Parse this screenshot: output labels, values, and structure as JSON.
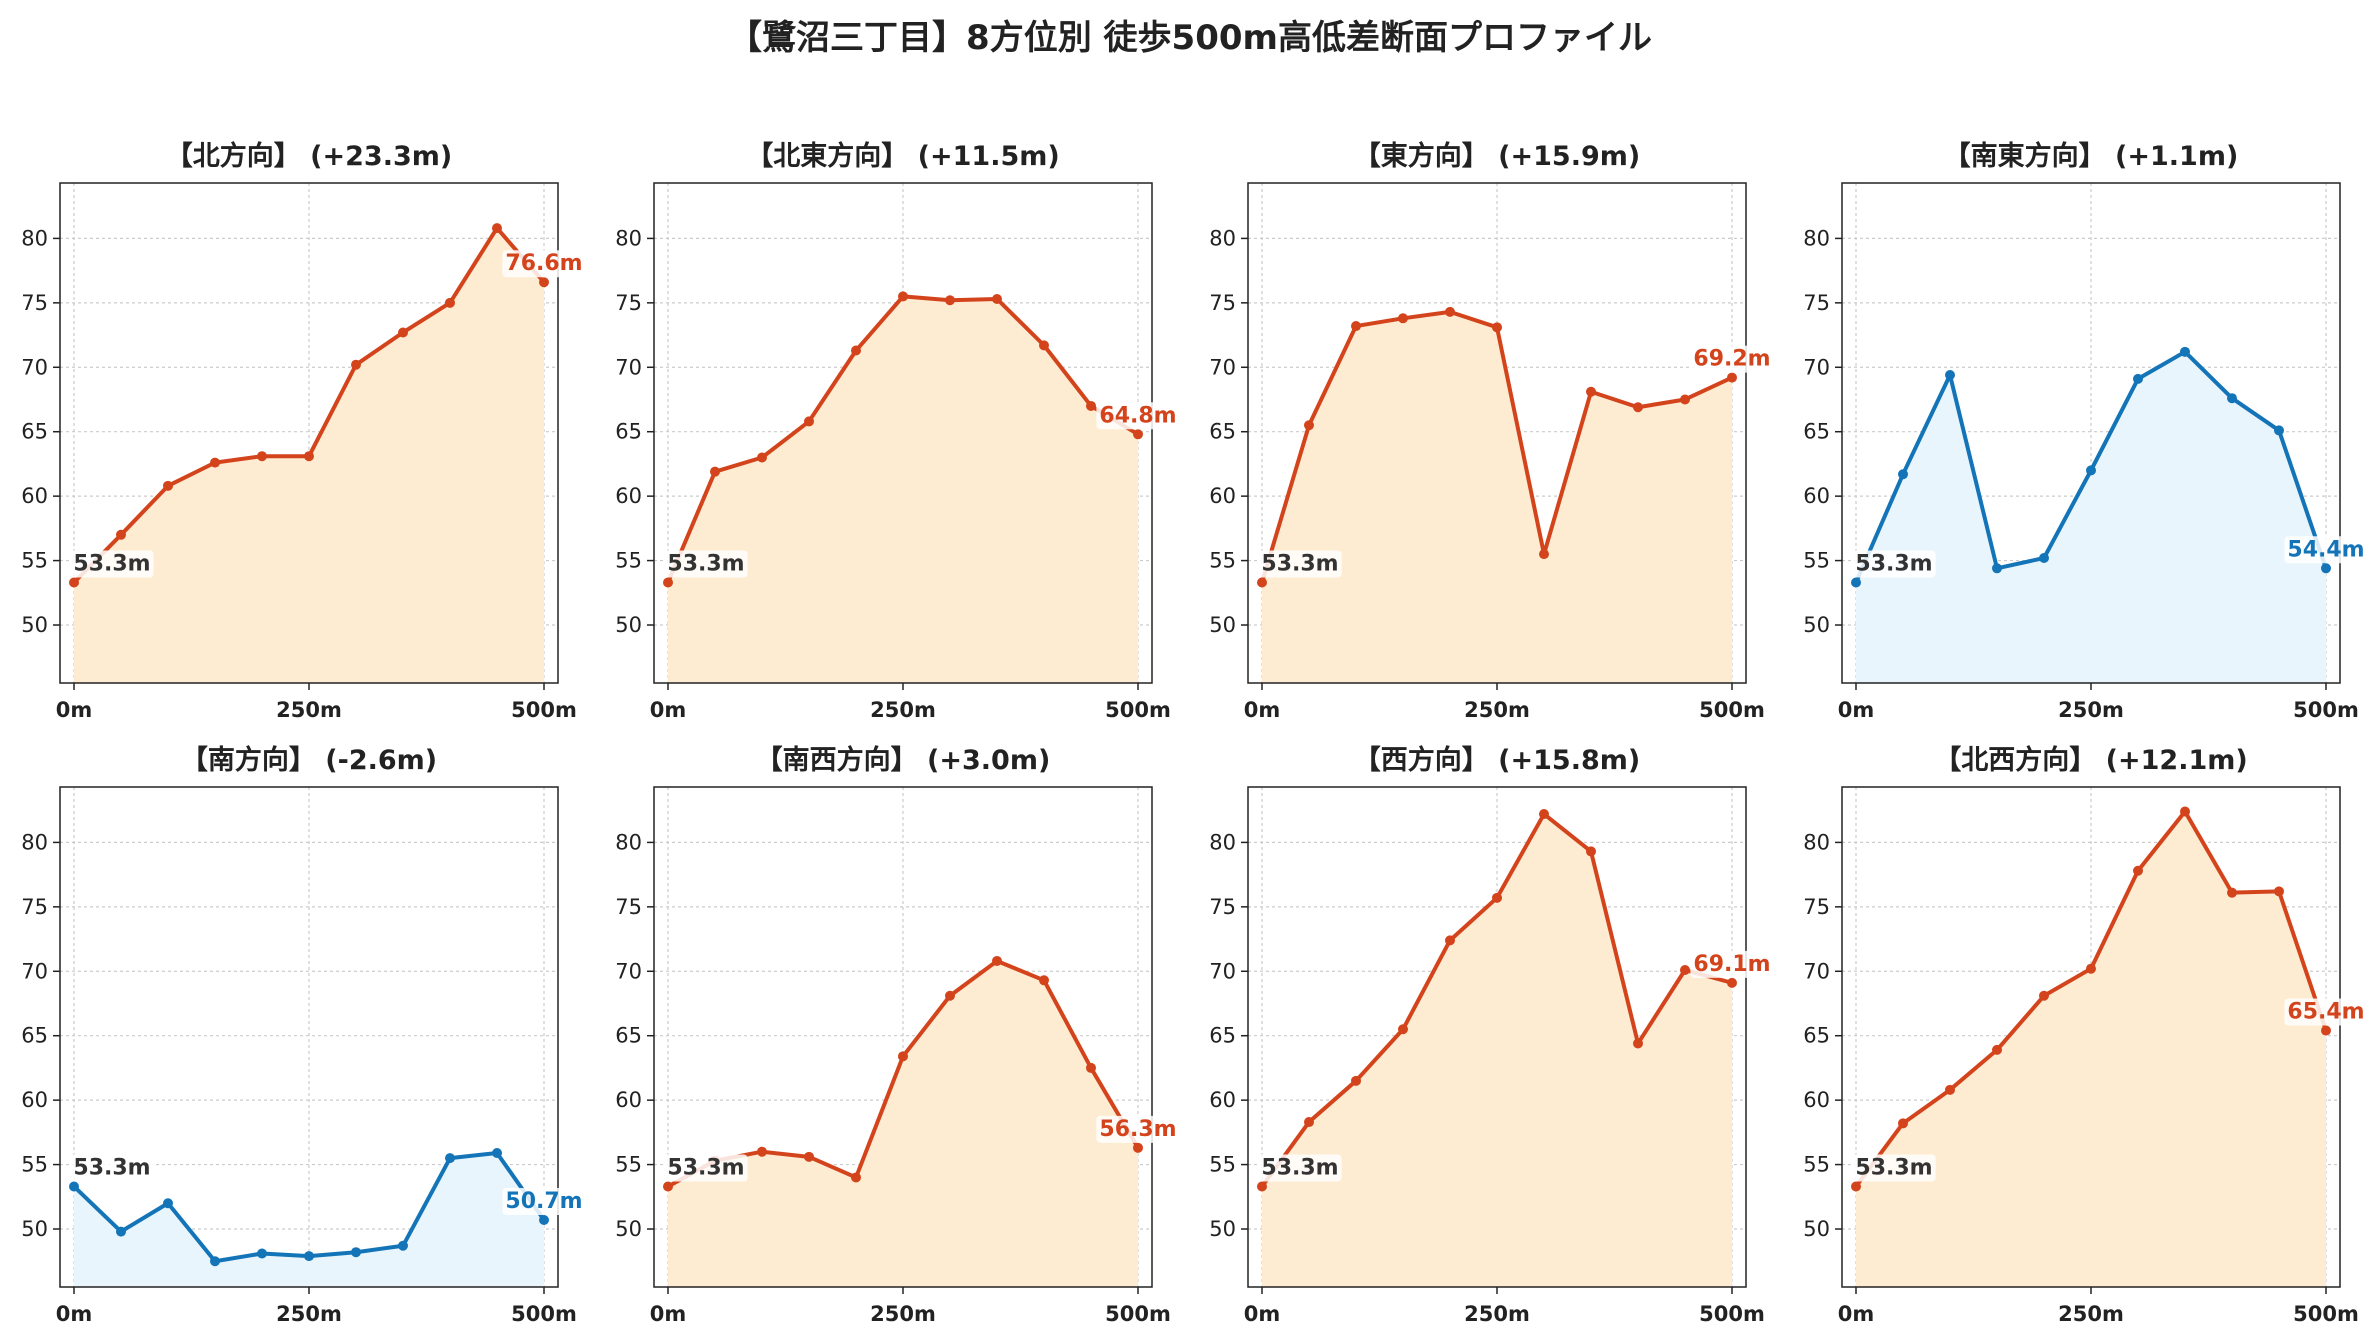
{
  "title": "【鷺沼三丁目】8方位別 徒歩500m高低差断面プロファイル",
  "colors": {
    "up": "#d4441c",
    "up_fill": "#fdecd2",
    "down": "#1474b8",
    "down_fill": "#e8f5fc",
    "grid": "#cccccc"
  },
  "chart_data": [
    {
      "type": "area",
      "title": "【北方向】 (+23.3m)",
      "trend": "up",
      "x": [
        0,
        50,
        100,
        150,
        200,
        250,
        300,
        350,
        400,
        450,
        500
      ],
      "y": [
        53.3,
        57.0,
        60.8,
        62.6,
        63.1,
        63.1,
        70.2,
        72.7,
        75.0,
        80.8,
        76.6
      ],
      "start_label": "53.3m",
      "end_label": "76.6m",
      "ylim": [
        45.5,
        84.3
      ],
      "yticks": [
        "50",
        "55",
        "60",
        "65",
        "70",
        "75",
        "80"
      ],
      "xticks": [
        "0m",
        "250m",
        "500m"
      ],
      "grid": true
    },
    {
      "type": "area",
      "title": "【北東方向】 (+11.5m)",
      "trend": "up",
      "x": [
        0,
        50,
        100,
        150,
        200,
        250,
        300,
        350,
        400,
        450,
        500
      ],
      "y": [
        53.3,
        61.9,
        63.0,
        65.8,
        71.3,
        75.5,
        75.2,
        75.3,
        71.7,
        67.0,
        64.8
      ],
      "start_label": "53.3m",
      "end_label": "64.8m",
      "ylim": [
        45.5,
        84.3
      ],
      "yticks": [
        "50",
        "55",
        "60",
        "65",
        "70",
        "75",
        "80"
      ],
      "xticks": [
        "0m",
        "250m",
        "500m"
      ],
      "grid": true
    },
    {
      "type": "area",
      "title": "【東方向】 (+15.9m)",
      "trend": "up",
      "x": [
        0,
        50,
        100,
        150,
        200,
        250,
        300,
        350,
        400,
        450,
        500
      ],
      "y": [
        53.3,
        65.5,
        73.2,
        73.8,
        74.3,
        73.1,
        55.5,
        68.1,
        66.9,
        67.5,
        69.2
      ],
      "start_label": "53.3m",
      "end_label": "69.2m",
      "ylim": [
        45.5,
        84.3
      ],
      "yticks": [
        "50",
        "55",
        "60",
        "65",
        "70",
        "75",
        "80"
      ],
      "xticks": [
        "0m",
        "250m",
        "500m"
      ],
      "grid": true
    },
    {
      "type": "area",
      "title": "【南東方向】 (+1.1m)",
      "trend": "down",
      "x": [
        0,
        50,
        100,
        150,
        200,
        250,
        300,
        350,
        400,
        450,
        500
      ],
      "y": [
        53.3,
        61.7,
        69.4,
        54.4,
        55.2,
        62.0,
        69.1,
        71.2,
        67.6,
        65.1,
        54.4
      ],
      "start_label": "53.3m",
      "end_label": "54.4m",
      "ylim": [
        45.5,
        84.3
      ],
      "yticks": [
        "50",
        "55",
        "60",
        "65",
        "70",
        "75",
        "80"
      ],
      "xticks": [
        "0m",
        "250m",
        "500m"
      ],
      "grid": true
    },
    {
      "type": "area",
      "title": "【南方向】 (-2.6m)",
      "trend": "down",
      "x": [
        0,
        50,
        100,
        150,
        200,
        250,
        300,
        350,
        400,
        450,
        500
      ],
      "y": [
        53.3,
        49.8,
        52.0,
        47.5,
        48.1,
        47.9,
        48.2,
        48.7,
        55.5,
        55.9,
        50.7
      ],
      "start_label": "53.3m",
      "end_label": "50.7m",
      "ylim": [
        45.5,
        84.3
      ],
      "yticks": [
        "50",
        "55",
        "60",
        "65",
        "70",
        "75",
        "80"
      ],
      "xticks": [
        "0m",
        "250m",
        "500m"
      ],
      "grid": true
    },
    {
      "type": "area",
      "title": "【南西方向】 (+3.0m)",
      "trend": "up",
      "x": [
        0,
        50,
        100,
        150,
        200,
        250,
        300,
        350,
        400,
        450,
        500
      ],
      "y": [
        53.3,
        55.3,
        56.0,
        55.6,
        54.0,
        63.4,
        68.1,
        70.8,
        69.3,
        62.5,
        56.3
      ],
      "start_label": "53.3m",
      "end_label": "56.3m",
      "ylim": [
        45.5,
        84.3
      ],
      "yticks": [
        "50",
        "55",
        "60",
        "65",
        "70",
        "75",
        "80"
      ],
      "xticks": [
        "0m",
        "250m",
        "500m"
      ],
      "grid": true
    },
    {
      "type": "area",
      "title": "【西方向】 (+15.8m)",
      "trend": "up",
      "x": [
        0,
        50,
        100,
        150,
        200,
        250,
        300,
        350,
        400,
        450,
        500
      ],
      "y": [
        53.3,
        58.3,
        61.5,
        65.5,
        72.4,
        75.7,
        82.2,
        79.3,
        64.4,
        70.1,
        69.1
      ],
      "start_label": "53.3m",
      "end_label": "69.1m",
      "ylim": [
        45.5,
        84.3
      ],
      "yticks": [
        "50",
        "55",
        "60",
        "65",
        "70",
        "75",
        "80"
      ],
      "xticks": [
        "0m",
        "250m",
        "500m"
      ],
      "grid": true
    },
    {
      "type": "area",
      "title": "【北西方向】 (+12.1m)",
      "trend": "up",
      "x": [
        0,
        50,
        100,
        150,
        200,
        250,
        300,
        350,
        400,
        450,
        500
      ],
      "y": [
        53.3,
        58.2,
        60.8,
        63.9,
        68.1,
        70.2,
        77.8,
        82.4,
        76.1,
        76.2,
        65.4
      ],
      "start_label": "53.3m",
      "end_label": "65.4m",
      "ylim": [
        45.5,
        84.3
      ],
      "yticks": [
        "50",
        "55",
        "60",
        "65",
        "70",
        "75",
        "80"
      ],
      "xticks": [
        "0m",
        "250m",
        "500m"
      ],
      "grid": true
    }
  ]
}
